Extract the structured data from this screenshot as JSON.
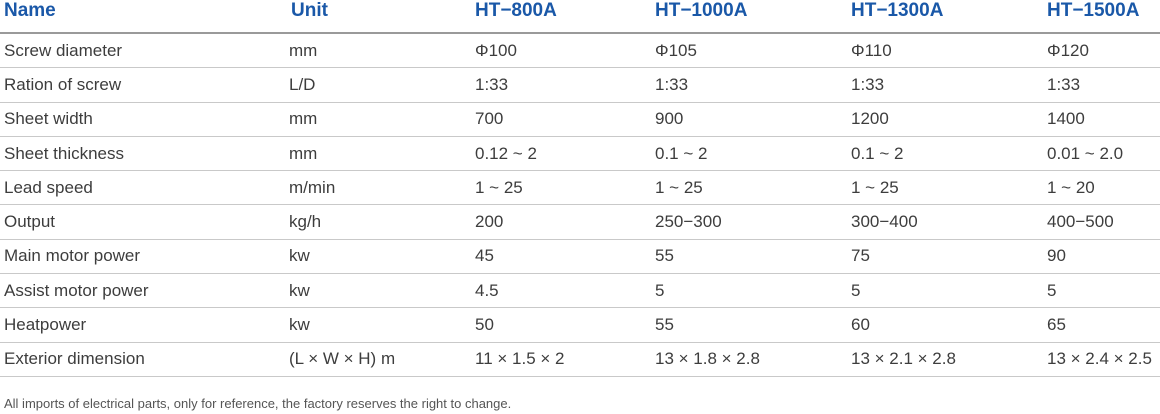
{
  "table": {
    "headers": {
      "name": "Name",
      "unit": "Unit",
      "models": [
        "HT−800A",
        "HT−1000A",
        "HT−1300A",
        "HT−1500A"
      ]
    },
    "rows": [
      {
        "name": "Screw diameter",
        "unit": "mm",
        "values": [
          "Φ100",
          "Φ105",
          "Φ110",
          "Φ120"
        ]
      },
      {
        "name": "Ration of screw",
        "unit": "L/D",
        "values": [
          "1:33",
          "1:33",
          "1:33",
          "1:33"
        ]
      },
      {
        "name": "Sheet width",
        "unit": "mm",
        "values": [
          "700",
          "900",
          "1200",
          "1400"
        ]
      },
      {
        "name": "Sheet thickness",
        "unit": "mm",
        "values": [
          "0.12 ~ 2",
          "0.1 ~ 2",
          "0.1 ~ 2",
          "0.01 ~ 2.0"
        ]
      },
      {
        "name": "Lead speed",
        "unit": "m/min",
        "values": [
          "1 ~ 25",
          "1 ~ 25",
          "1 ~ 25",
          "1 ~ 20"
        ]
      },
      {
        "name": "Output",
        "unit": "kg/h",
        "values": [
          "200",
          "250−300",
          "300−400",
          "400−500"
        ]
      },
      {
        "name": "Main motor power",
        "unit": "kw",
        "values": [
          "45",
          "55",
          "75",
          "90"
        ]
      },
      {
        "name": "Assist motor power",
        "unit": "kw",
        "values": [
          "4.5",
          "5",
          "5",
          "5"
        ]
      },
      {
        "name": "Heatpower",
        "unit": "kw",
        "values": [
          "50",
          "55",
          "60",
          "65"
        ]
      },
      {
        "name": "Exterior dimension",
        "unit": "(L × W × H) m",
        "values": [
          "11 × 1.5 × 2",
          "13 × 1.8 × 2.8",
          "13 × 2.1 × 2.8",
          "13 × 2.4 × 2.5"
        ]
      }
    ]
  },
  "footnote": "All imports of electrical parts, only for reference, the factory reserves the right to change.",
  "colors": {
    "header_text": "#1a58a8",
    "body_text": "#3d3d3d",
    "row_rule": "#c9c9c9"
  }
}
